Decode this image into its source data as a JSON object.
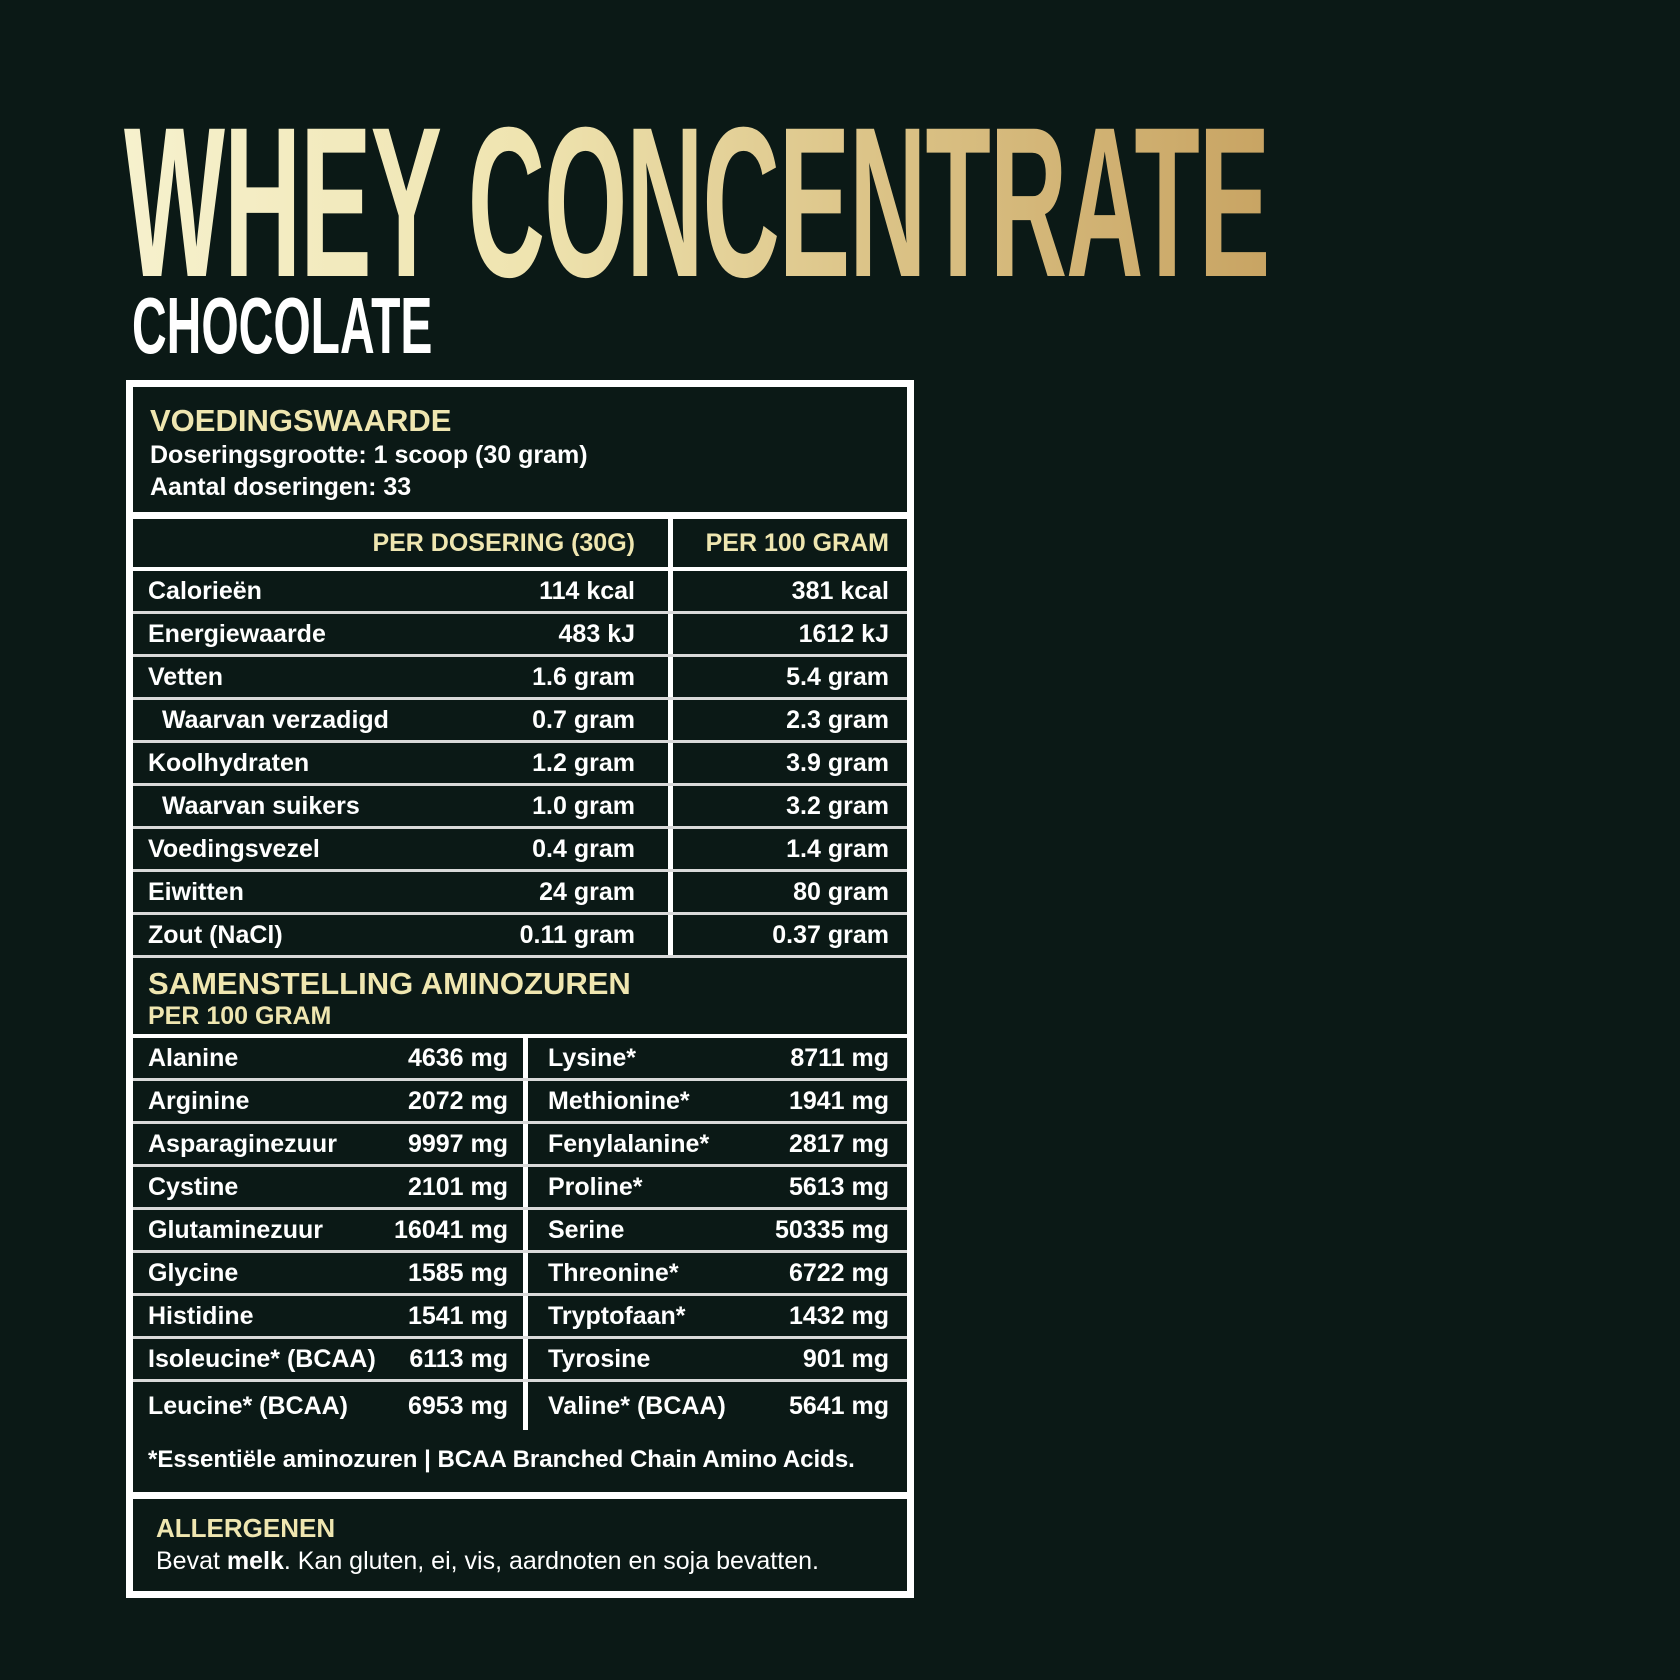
{
  "header": {
    "title": "WHEY CONCENTRATE",
    "subtitle": "CHOCOLATE"
  },
  "colors": {
    "background": "#0b1916",
    "accent": "#efe6b0",
    "title_gradient": [
      "#f6f1cd",
      "#c8a463"
    ]
  },
  "nutrition": {
    "heading": "VOEDINGSWAARDE",
    "serving_size": "Doseringsgrootte: 1 scoop (30 gram)",
    "servings": "Aantal doseringen: 33",
    "col_per_serving": "PER DOSERING (30G)",
    "col_per_100": "PER 100 GRAM",
    "rows": [
      {
        "label": "Calorieën",
        "serving": "114 kcal",
        "per100": "381 kcal"
      },
      {
        "label": "Energiewaarde",
        "serving": "483 kJ",
        "per100": "1612 kJ"
      },
      {
        "label": "Vetten",
        "serving": "1.6 gram",
        "per100": "5.4 gram"
      },
      {
        "label": "Waarvan verzadigd",
        "serving": "0.7 gram",
        "per100": "2.3 gram"
      },
      {
        "label": "Koolhydraten",
        "serving": "1.2 gram",
        "per100": "3.9 gram"
      },
      {
        "label": "Waarvan suikers",
        "serving": "1.0 gram",
        "per100": "3.2 gram"
      },
      {
        "label": "Voedingsvezel",
        "serving": "0.4 gram",
        "per100": "1.4 gram"
      },
      {
        "label": "Eiwitten",
        "serving": "24 gram",
        "per100": "80 gram"
      },
      {
        "label": "Zout (NaCl)",
        "serving": "0.11 gram",
        "per100": "0.37 gram"
      }
    ]
  },
  "amino": {
    "heading": "SAMENSTELLING AMINOZUREN",
    "subheading": "PER 100 GRAM",
    "rows": [
      {
        "l": "Alanine",
        "lv": "4636 mg",
        "r": "Lysine*",
        "rv": "8711 mg"
      },
      {
        "l": "Arginine",
        "lv": "2072 mg",
        "r": "Methionine*",
        "rv": "1941 mg"
      },
      {
        "l": "Asparaginezuur",
        "lv": "9997 mg",
        "r": "Fenylalanine*",
        "rv": "2817 mg"
      },
      {
        "l": "Cystine",
        "lv": "2101 mg",
        "r": "Proline*",
        "rv": "5613 mg"
      },
      {
        "l": "Glutaminezuur",
        "lv": "16041 mg",
        "r": "Serine",
        "rv": "50335 mg"
      },
      {
        "l": "Glycine",
        "lv": "1585 mg",
        "r": "Threonine*",
        "rv": "6722 mg"
      },
      {
        "l": "Histidine",
        "lv": "1541 mg",
        "r": "Tryptofaan*",
        "rv": "1432 mg"
      },
      {
        "l": "Isoleucine* (BCAA)",
        "lv": "6113 mg",
        "r": "Tyrosine",
        "rv": "901 mg"
      },
      {
        "l": "Leucine* (BCAA)",
        "lv": "6953 mg",
        "r": "Valine* (BCAA)",
        "rv": "5641 mg"
      }
    ],
    "footnote": "*Essentiële aminozuren | BCAA Branched Chain Amino Acids."
  },
  "allergens": {
    "heading": "ALLERGENEN",
    "prefix": "Bevat ",
    "bold": "melk",
    "rest": ". Kan gluten, ei, vis, aardnoten en soja bevatten."
  }
}
